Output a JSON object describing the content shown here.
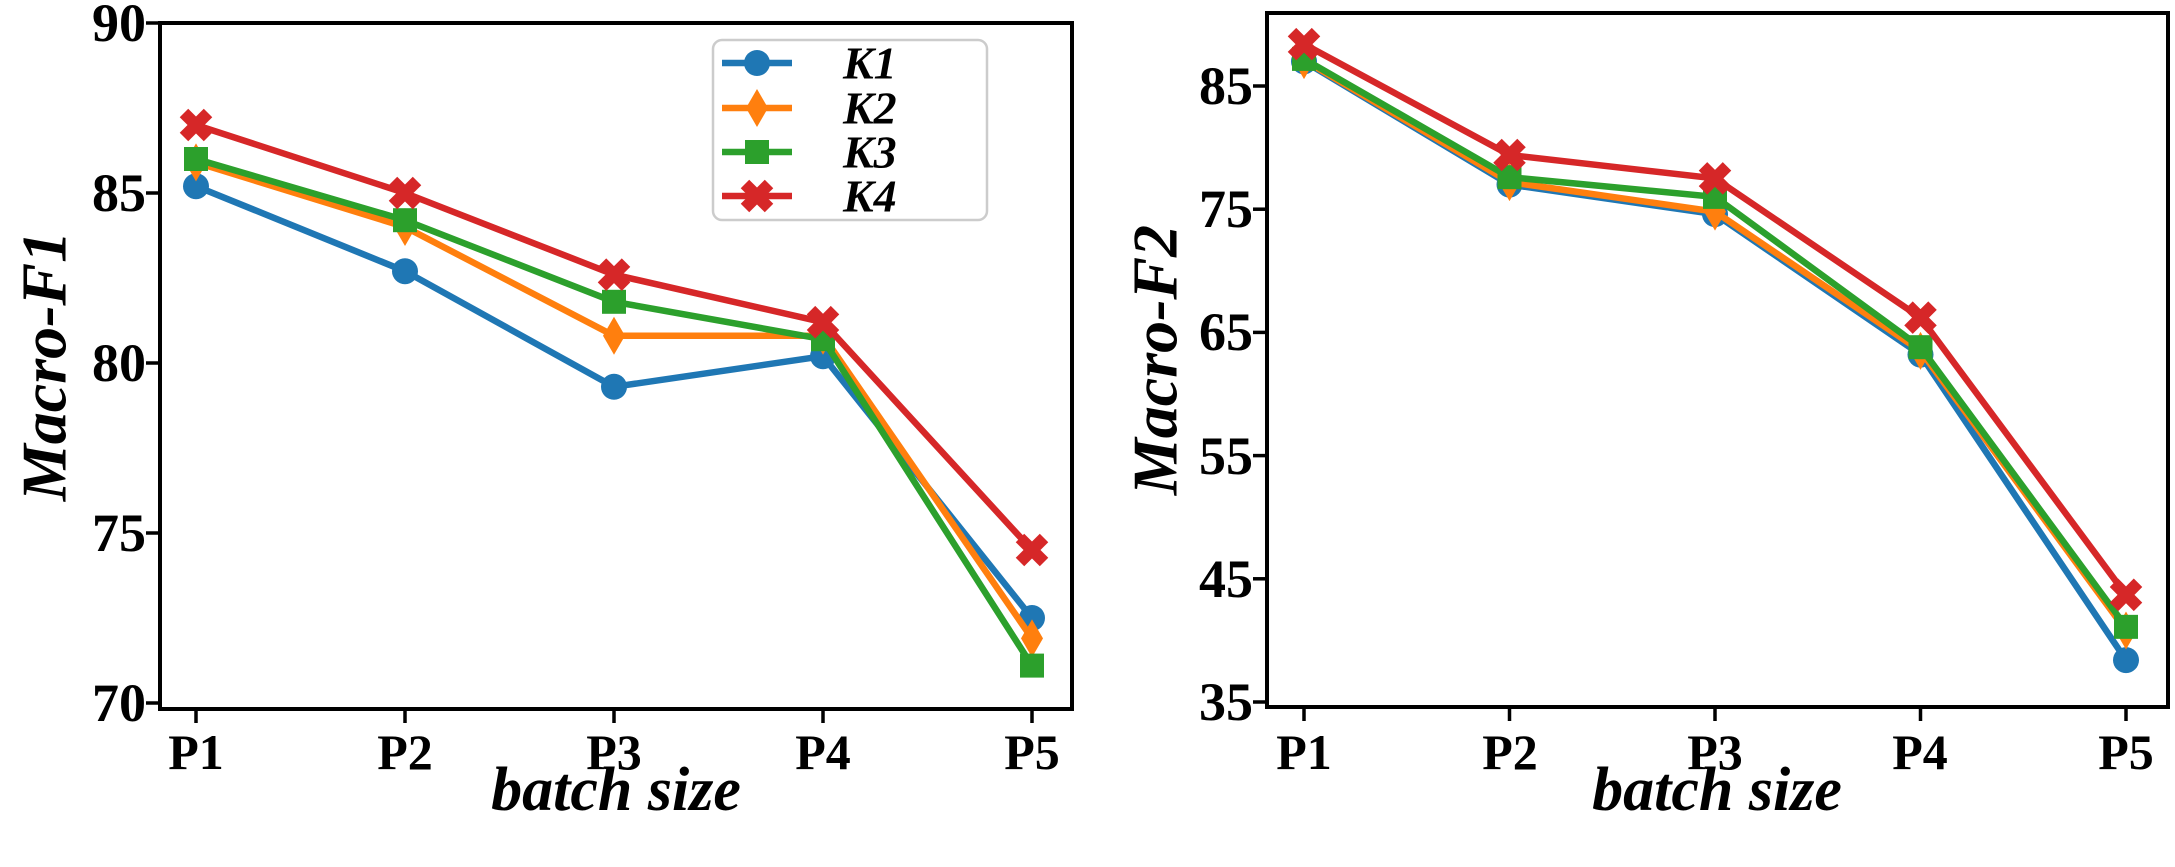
{
  "figure": {
    "background": "#ffffff"
  },
  "chart_data": [
    {
      "type": "line",
      "panel": "left",
      "title": "",
      "xlabel": "batch size",
      "ylabel": "Macro-F1",
      "categories": [
        "P1",
        "P2",
        "P3",
        "P4",
        "P5"
      ],
      "yticks": [
        90,
        85,
        80,
        75,
        70
      ],
      "ylim": [
        69.8,
        90
      ],
      "grid": false,
      "legend": {
        "visible": true,
        "position": "upper right",
        "entries": [
          "K1",
          "K2",
          "K3",
          "K4"
        ]
      },
      "series": [
        {
          "name": "K1",
          "color": "#1f77b4",
          "marker": "circle",
          "values": [
            85.2,
            82.7,
            79.3,
            80.2,
            72.5
          ]
        },
        {
          "name": "K2",
          "color": "#ff7f0e",
          "marker": "diamond",
          "values": [
            85.9,
            84.0,
            80.8,
            80.8,
            71.9
          ]
        },
        {
          "name": "K3",
          "color": "#2ca02c",
          "marker": "square",
          "values": [
            86.0,
            84.2,
            81.8,
            80.7,
            71.1
          ]
        },
        {
          "name": "K4",
          "color": "#d62728",
          "marker": "x",
          "values": [
            87.0,
            85.0,
            82.6,
            81.2,
            74.5
          ]
        }
      ]
    },
    {
      "type": "line",
      "panel": "right",
      "title": "",
      "xlabel": "batch size",
      "ylabel": "Macro-F2",
      "categories": [
        "P1",
        "P2",
        "P3",
        "P4",
        "P5"
      ],
      "yticks": [
        85,
        75,
        65,
        55,
        45,
        35
      ],
      "ylim": [
        34.6,
        90.9
      ],
      "grid": false,
      "legend": {
        "visible": false
      },
      "series": [
        {
          "name": "K1",
          "color": "#1f77b4",
          "marker": "circle",
          "values": [
            87.0,
            77.0,
            74.6,
            63.2,
            38.4
          ]
        },
        {
          "name": "K2",
          "color": "#ff7f0e",
          "marker": "diamond",
          "values": [
            87.1,
            77.2,
            74.8,
            63.5,
            40.8
          ]
        },
        {
          "name": "K3",
          "color": "#2ca02c",
          "marker": "square",
          "values": [
            87.2,
            77.6,
            76.0,
            63.8,
            41.1
          ]
        },
        {
          "name": "K4",
          "color": "#d62728",
          "marker": "x",
          "values": [
            88.4,
            79.4,
            77.5,
            66.2,
            43.7
          ]
        }
      ]
    }
  ]
}
